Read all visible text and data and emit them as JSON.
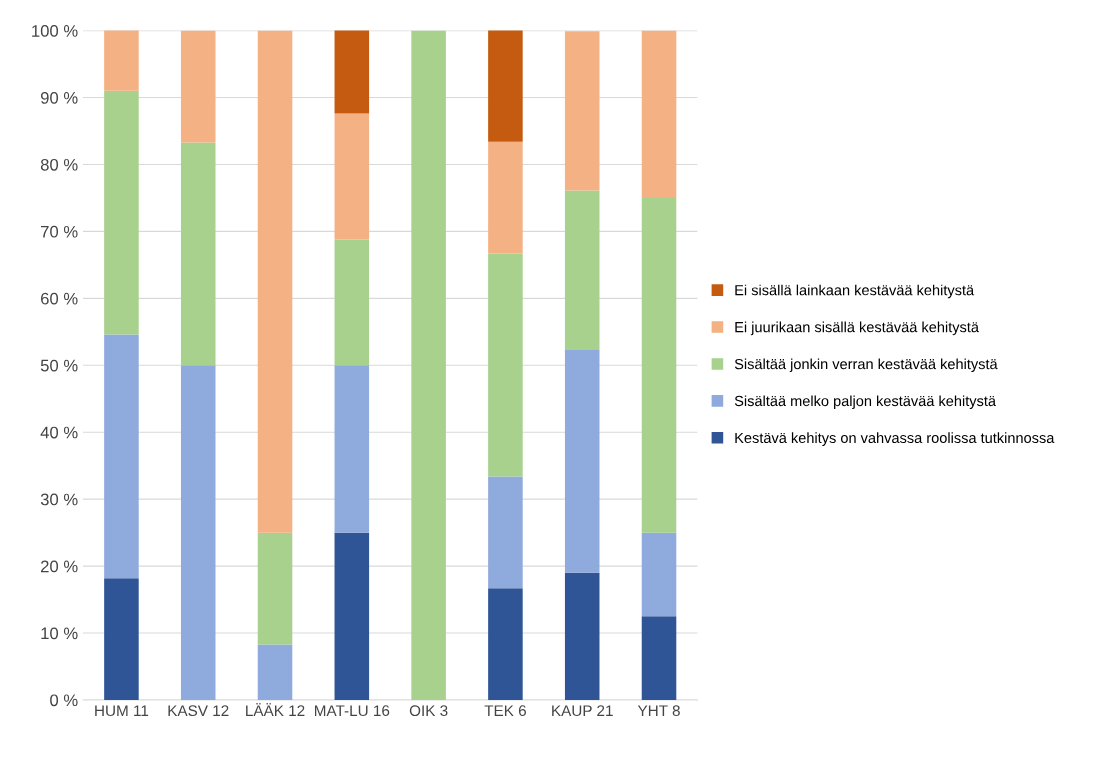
{
  "chart_data": {
    "type": "bar",
    "stacked": true,
    "categories": [
      "HUM 11",
      "KASV 12",
      "LÄÄK 12",
      "MAT-LU 16",
      "OIK 3",
      "TEK 6",
      "KAUP 21",
      "YHT 8"
    ],
    "series": [
      {
        "name": "Kestävä kehitys on vahvassa roolissa tutkinnossa",
        "color": "#2f5597",
        "values": [
          18.2,
          0,
          0,
          25,
          0,
          16.7,
          19.0,
          12.5
        ]
      },
      {
        "name": "Sisältää melko paljon kestävää kehitystä",
        "color": "#8faadc",
        "values": [
          36.4,
          50,
          8.3,
          25,
          0,
          16.7,
          33.3,
          12.5
        ]
      },
      {
        "name": "Sisältää jonkin verran kestävää kehitystä",
        "color": "#a9d18e",
        "values": [
          36.4,
          33.3,
          16.7,
          18.8,
          100,
          33.3,
          23.8,
          50
        ]
      },
      {
        "name": "Ei juurikaan sisällä kestävää kehitystä",
        "color": "#f4b183",
        "values": [
          9.1,
          16.7,
          75,
          18.8,
          0,
          16.7,
          23.8,
          25
        ]
      },
      {
        "name": "Ei sisällä lainkaan kestävää kehitystä",
        "color": "#c55a11",
        "values": [
          0,
          0,
          0,
          12.5,
          0,
          16.7,
          0,
          0
        ]
      }
    ],
    "ylim": [
      0,
      100
    ],
    "yticks": [
      {
        "value": 0,
        "label": "0 %"
      },
      {
        "value": 10,
        "label": "10 %"
      },
      {
        "value": 20,
        "label": "20 %"
      },
      {
        "value": 30,
        "label": "30 %"
      },
      {
        "value": 40,
        "label": "40 %"
      },
      {
        "value": 50,
        "label": "50 %"
      },
      {
        "value": 60,
        "label": "60 %"
      },
      {
        "value": 70,
        "label": "70 %"
      },
      {
        "value": 80,
        "label": "80 %"
      },
      {
        "value": 90,
        "label": "90 %"
      },
      {
        "value": 100,
        "label": "100 %"
      }
    ],
    "grid": "y",
    "legend": "right"
  }
}
